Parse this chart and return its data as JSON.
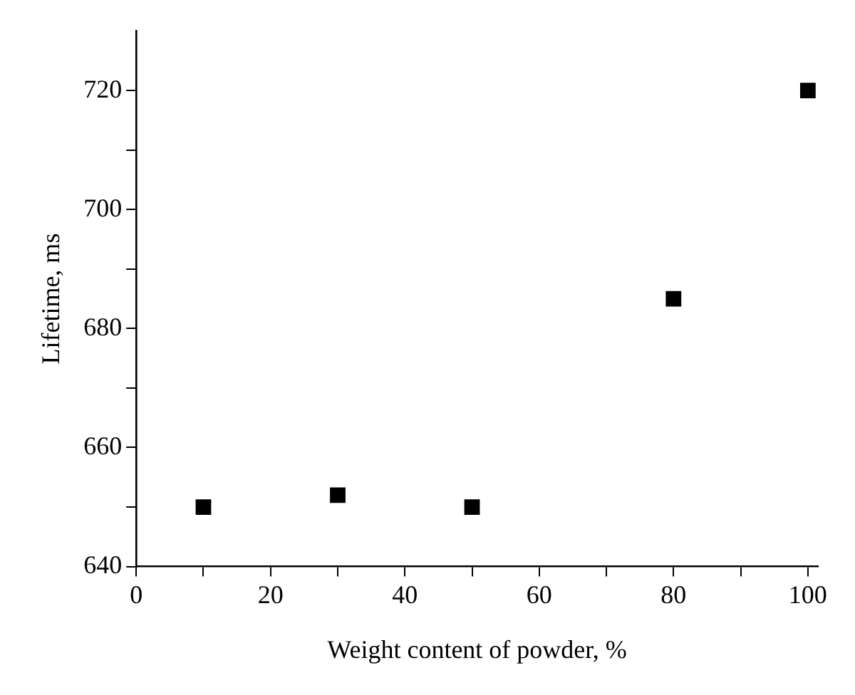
{
  "chart_data": {
    "type": "scatter",
    "xlabel": "Weight content of powder, %",
    "ylabel": "Lifetime, ms",
    "x": [
      10,
      30,
      50,
      80,
      100
    ],
    "series": [
      {
        "color": "#000000",
        "values": [
          650,
          652,
          650,
          685,
          720
        ]
      }
    ],
    "marker": "square",
    "legend": false,
    "grid": false,
    "xlim": [
      0,
      101.5
    ],
    "xticks": [
      0,
      {
        "value": 10,
        "label": null
      },
      20,
      {
        "value": 30,
        "label": null
      },
      40,
      {
        "value": 50,
        "label": null
      },
      60,
      {
        "value": 70,
        "label": null
      },
      80,
      {
        "value": 90,
        "label": null
      },
      100
    ],
    "ylim": [
      640,
      730
    ],
    "yticks": [
      640,
      {
        "value": 650,
        "label": null
      },
      660,
      {
        "value": 670,
        "label": null
      },
      680,
      {
        "value": 690,
        "label": null
      },
      700,
      {
        "value": 710,
        "label": null
      },
      720
    ]
  }
}
